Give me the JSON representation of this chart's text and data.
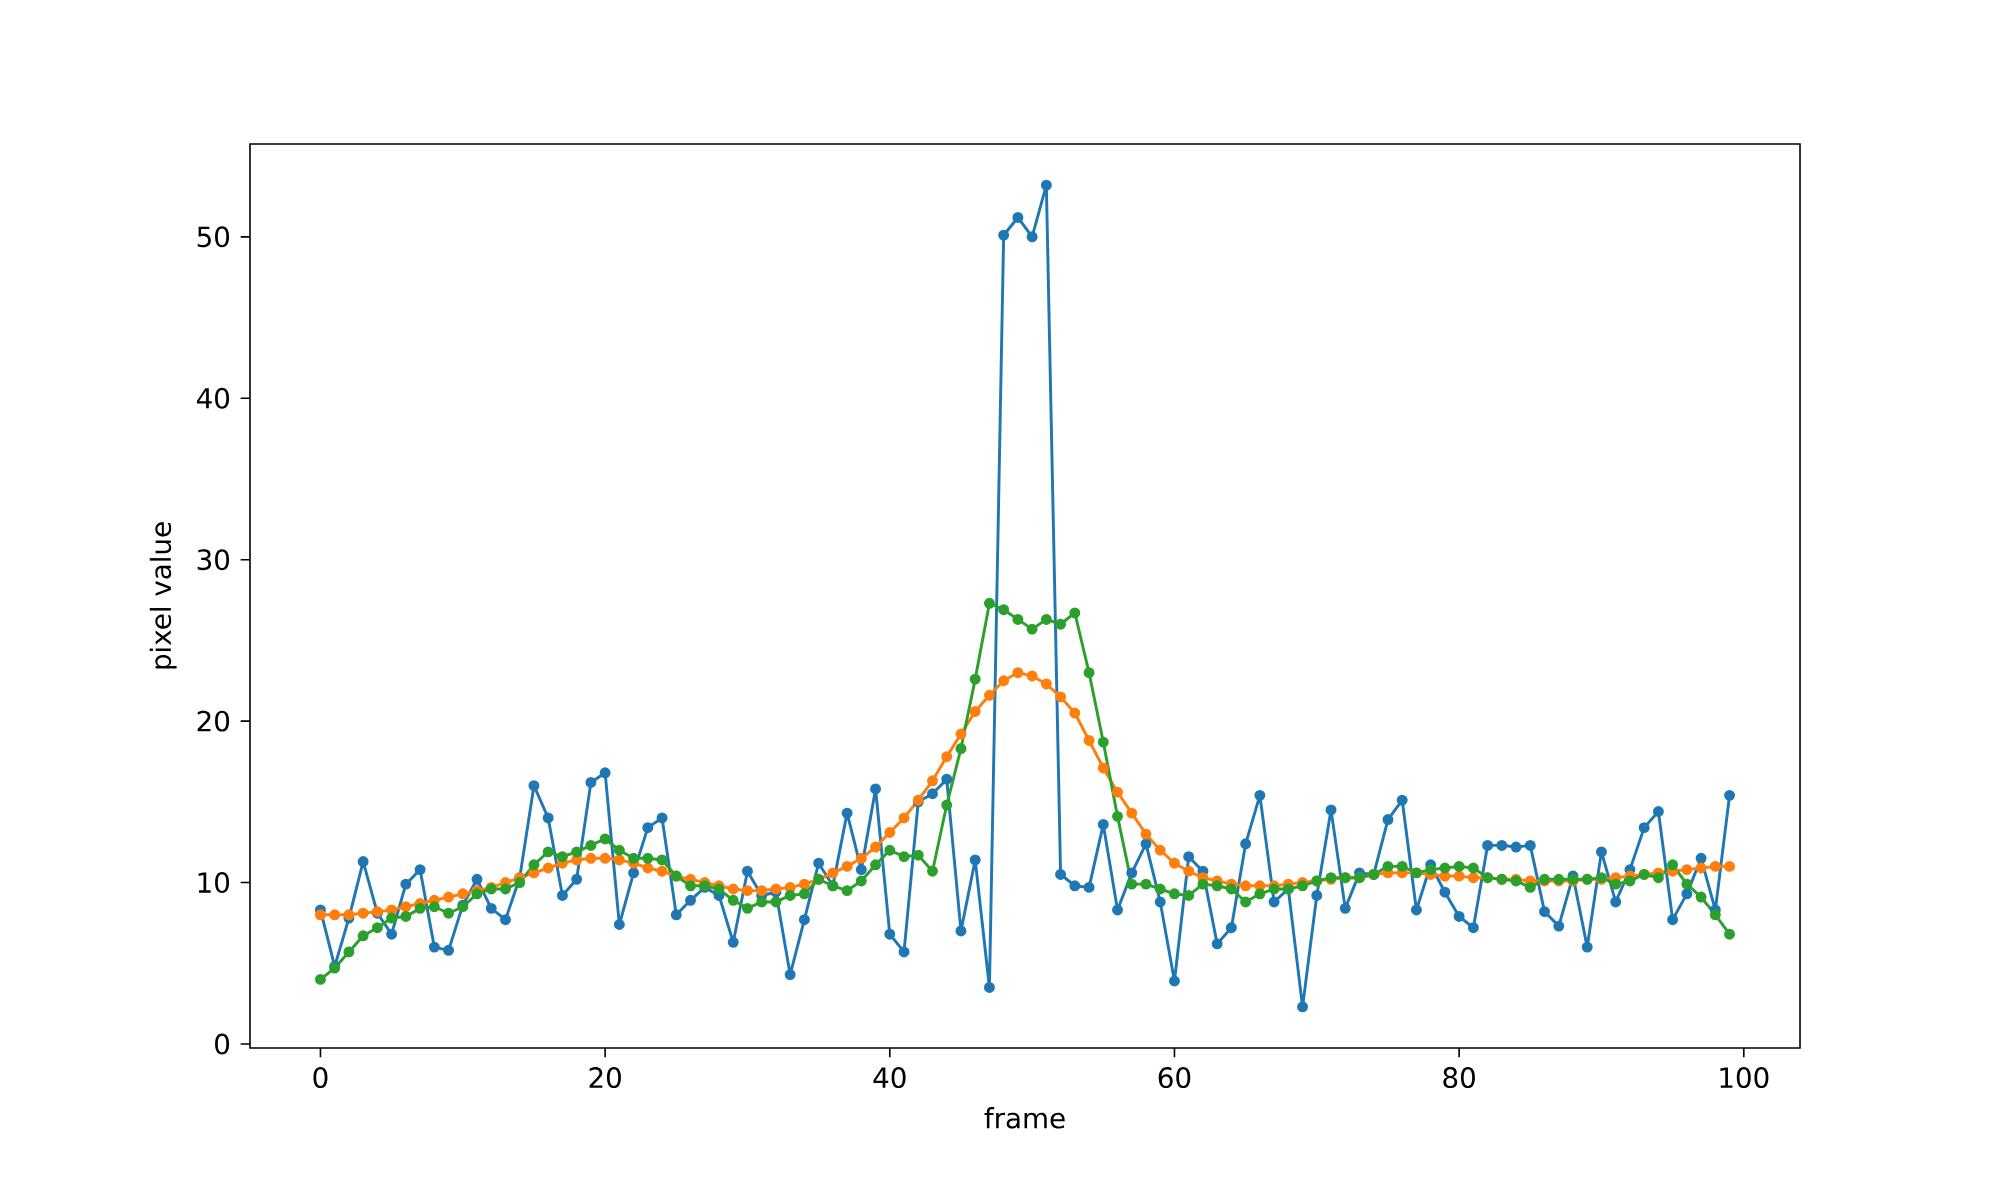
{
  "chart_data": {
    "type": "line",
    "xlabel": "frame",
    "ylabel": "pixel value",
    "x": [
      0,
      1,
      2,
      3,
      4,
      5,
      6,
      7,
      8,
      9,
      10,
      11,
      12,
      13,
      14,
      15,
      16,
      17,
      18,
      19,
      20,
      21,
      22,
      23,
      24,
      25,
      26,
      27,
      28,
      29,
      30,
      31,
      32,
      33,
      34,
      35,
      36,
      37,
      38,
      39,
      40,
      41,
      42,
      43,
      44,
      45,
      46,
      47,
      48,
      49,
      50,
      51,
      52,
      53,
      54,
      55,
      56,
      57,
      58,
      59,
      60,
      61,
      62,
      63,
      64,
      65,
      66,
      67,
      68,
      69,
      70,
      71,
      72,
      73,
      74,
      75,
      76,
      77,
      78,
      79,
      80,
      81,
      82,
      83,
      84,
      85,
      86,
      87,
      88,
      89,
      90,
      91,
      92,
      93,
      94,
      95,
      96,
      97,
      98,
      99
    ],
    "series": [
      {
        "color": "#1f77b4",
        "values": [
          8.3,
          4.8,
          7.8,
          11.3,
          8.1,
          6.8,
          9.9,
          10.8,
          6.0,
          5.8,
          8.6,
          10.2,
          8.4,
          7.7,
          10.3,
          16.0,
          14.0,
          9.2,
          10.2,
          16.2,
          16.8,
          7.4,
          10.6,
          13.4,
          14.0,
          8.0,
          8.9,
          9.7,
          9.2,
          6.3,
          10.7,
          9.2,
          9.4,
          4.3,
          7.7,
          11.2,
          9.8,
          14.3,
          10.8,
          15.8,
          6.8,
          5.7,
          15.0,
          15.5,
          16.4,
          7.0,
          11.4,
          3.5,
          50.1,
          51.2,
          50.0,
          53.2,
          10.5,
          9.8,
          9.7,
          13.6,
          8.3,
          10.6,
          12.4,
          8.8,
          3.9,
          11.6,
          10.7,
          6.2,
          7.2,
          12.4,
          15.4,
          8.8,
          9.6,
          2.3,
          9.2,
          14.5,
          8.4,
          10.6,
          10.5,
          13.9,
          15.1,
          8.3,
          11.1,
          9.4,
          7.9,
          7.2,
          12.3,
          12.3,
          12.2,
          12.3,
          8.2,
          7.3,
          10.4,
          6.0,
          11.9,
          8.8,
          10.8,
          13.4,
          14.4,
          7.7,
          9.3,
          11.5,
          8.3,
          15.4
        ]
      },
      {
        "color": "#ff7f0e",
        "values": [
          8.0,
          8.0,
          8.0,
          8.1,
          8.2,
          8.3,
          8.5,
          8.7,
          8.9,
          9.1,
          9.3,
          9.5,
          9.7,
          10.0,
          10.3,
          10.6,
          10.9,
          11.2,
          11.4,
          11.5,
          11.5,
          11.4,
          11.2,
          10.9,
          10.7,
          10.4,
          10.2,
          10.0,
          9.8,
          9.6,
          9.5,
          9.5,
          9.6,
          9.7,
          9.9,
          10.2,
          10.6,
          11.0,
          11.5,
          12.2,
          13.1,
          14.0,
          15.1,
          16.3,
          17.8,
          19.2,
          20.6,
          21.6,
          22.5,
          23.0,
          22.8,
          22.3,
          21.5,
          20.5,
          18.8,
          17.1,
          15.6,
          14.3,
          13.0,
          12.0,
          11.2,
          10.7,
          10.3,
          10.1,
          9.9,
          9.8,
          9.8,
          9.8,
          9.9,
          10.0,
          10.1,
          10.2,
          10.3,
          10.3,
          10.5,
          10.6,
          10.6,
          10.6,
          10.5,
          10.4,
          10.4,
          10.3,
          10.3,
          10.2,
          10.2,
          10.1,
          10.1,
          10.1,
          10.1,
          10.2,
          10.2,
          10.3,
          10.4,
          10.5,
          10.6,
          10.7,
          10.8,
          10.9,
          11.0,
          11.0
        ]
      },
      {
        "color": "#2ca02c",
        "values": [
          4.0,
          4.7,
          5.7,
          6.7,
          7.2,
          7.8,
          7.9,
          8.4,
          8.5,
          8.1,
          8.5,
          9.3,
          9.6,
          9.6,
          10.0,
          11.1,
          11.9,
          11.6,
          11.9,
          12.3,
          12.7,
          12.0,
          11.5,
          11.5,
          11.4,
          10.4,
          9.8,
          9.8,
          9.6,
          8.9,
          8.4,
          8.8,
          8.8,
          9.2,
          9.3,
          10.2,
          9.8,
          9.5,
          10.1,
          11.1,
          12.0,
          11.6,
          11.7,
          10.7,
          14.8,
          18.3,
          22.6,
          27.3,
          26.9,
          26.3,
          25.7,
          26.3,
          26.0,
          26.7,
          23.0,
          18.7,
          14.1,
          9.9,
          9.9,
          9.6,
          9.3,
          9.2,
          9.9,
          9.8,
          9.6,
          8.8,
          9.3,
          9.6,
          9.6,
          9.8,
          10.1,
          10.3,
          10.3,
          10.3,
          10.5,
          11.0,
          11.0,
          10.6,
          10.8,
          10.9,
          11.0,
          10.9,
          10.3,
          10.2,
          10.1,
          9.7,
          10.2,
          10.2,
          10.2,
          10.2,
          10.3,
          9.9,
          10.1,
          10.5,
          10.3,
          11.1,
          9.9,
          9.1,
          8.0,
          6.8
        ]
      }
    ],
    "xlim": [
      -4.95,
      103.95
    ],
    "ylim": [
      -0.25,
      55.75
    ],
    "xticks": [
      0,
      20,
      40,
      60,
      80,
      100
    ],
    "yticks": [
      0,
      10,
      20,
      30,
      40,
      50
    ],
    "marker": "circle",
    "line_style": "solid"
  }
}
